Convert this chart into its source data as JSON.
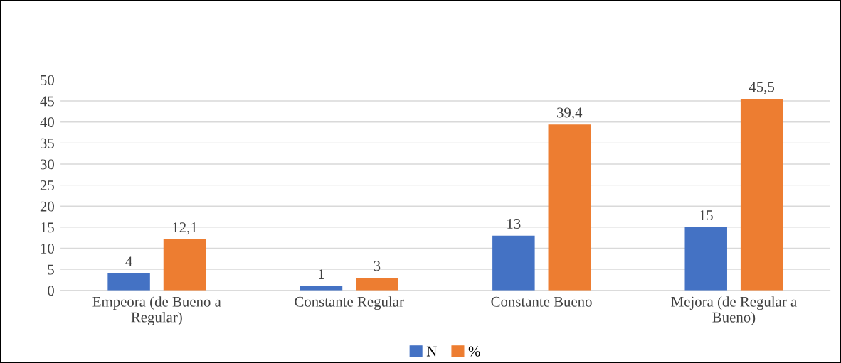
{
  "chart_data": {
    "type": "bar",
    "categories": [
      "Empeora (de Bueno a\nRegular)",
      "Constante Regular",
      "Constante Bueno",
      "Mejora (de Regular a\nBueno)"
    ],
    "series": [
      {
        "name": "N",
        "color": "#4472c4",
        "values": [
          4,
          1,
          13,
          15
        ]
      },
      {
        "name": "%",
        "color": "#ed7d31",
        "values": [
          12.1,
          3,
          39.4,
          45.5
        ],
        "value_labels": [
          "12,1",
          "3",
          "39,4",
          "45,5"
        ]
      }
    ],
    "data_labels": true,
    "ylim": [
      0,
      50
    ],
    "yticks": [
      0,
      5,
      10,
      15,
      20,
      25,
      30,
      35,
      40,
      45,
      50
    ],
    "grid": "y",
    "legend": "bottom"
  }
}
